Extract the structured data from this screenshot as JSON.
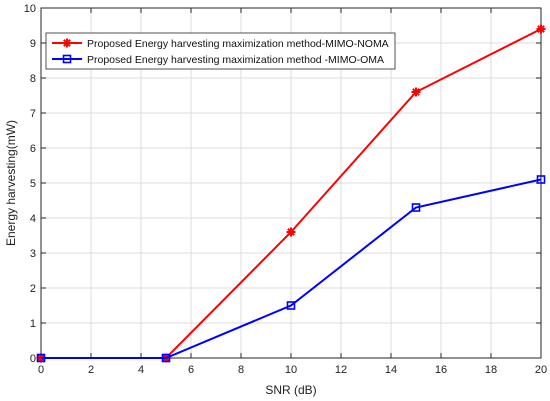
{
  "chart_data": {
    "type": "line",
    "xlabel": "SNR (dB)",
    "ylabel": "Energy harvesting(mW)",
    "xlim": [
      0,
      20
    ],
    "ylim": [
      0,
      10
    ],
    "xticks": [
      0,
      2,
      4,
      6,
      8,
      10,
      12,
      14,
      16,
      18,
      20
    ],
    "yticks": [
      0,
      1,
      2,
      3,
      4,
      5,
      6,
      7,
      8,
      9,
      10
    ],
    "grid": true,
    "legend_position": "top-left",
    "x": [
      0,
      5,
      10,
      15,
      20
    ],
    "series": [
      {
        "name": "Proposed Energy harvesting maximization method-MIMO-NOMA",
        "values": [
          0,
          0,
          3.6,
          7.6,
          9.4
        ],
        "color": "#ff0000",
        "marker": "asterisk"
      },
      {
        "name": "Proposed Energy harvesting maximization method -MIMO-OMA",
        "values": [
          0,
          0,
          1.5,
          4.3,
          5.1
        ],
        "color": "#0000ff",
        "marker": "square"
      }
    ]
  }
}
